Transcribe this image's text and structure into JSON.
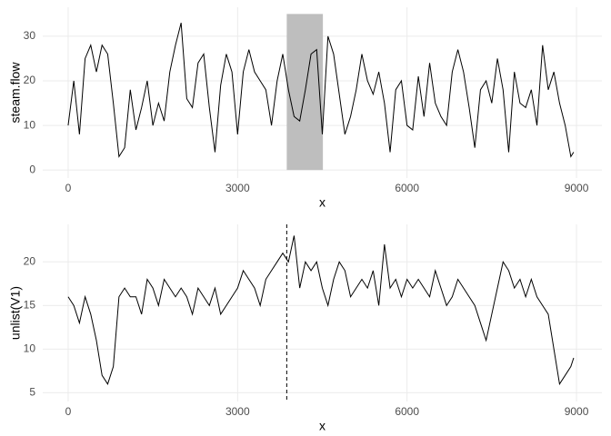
{
  "chart_data": [
    {
      "type": "line",
      "x_label": "x",
      "y_label": "steam.flow",
      "xlim": [
        -450,
        9450
      ],
      "ylim": [
        -1.8,
        36.5
      ],
      "xticks": [
        0,
        3000,
        6000,
        9000
      ],
      "yticks": [
        0,
        10,
        20,
        30
      ],
      "grid": true,
      "highlight": {
        "xmin": 3870,
        "xmax": 4510,
        "ymin": 0,
        "ymax": 35,
        "color": "#bebebe"
      },
      "x": [
        0,
        100,
        200,
        300,
        400,
        500,
        600,
        700,
        800,
        900,
        1000,
        1100,
        1200,
        1300,
        1400,
        1500,
        1600,
        1700,
        1800,
        1900,
        2000,
        2100,
        2200,
        2300,
        2400,
        2500,
        2600,
        2700,
        2800,
        2900,
        3000,
        3100,
        3200,
        3300,
        3400,
        3500,
        3600,
        3700,
        3800,
        3900,
        4000,
        4100,
        4200,
        4300,
        4400,
        4500,
        4600,
        4700,
        4800,
        4900,
        5000,
        5100,
        5200,
        5300,
        5400,
        5500,
        5600,
        5700,
        5800,
        5900,
        6000,
        6100,
        6200,
        6300,
        6400,
        6500,
        6600,
        6700,
        6800,
        6900,
        7000,
        7100,
        7200,
        7300,
        7400,
        7500,
        7600,
        7700,
        7800,
        7900,
        8000,
        8100,
        8200,
        8300,
        8400,
        8500,
        8600,
        8700,
        8800,
        8900,
        8950
      ],
      "series": [
        {
          "color": "#000000",
          "values": [
            10,
            20,
            8,
            25,
            28,
            22,
            28,
            26,
            15,
            3,
            5,
            18,
            9,
            14,
            20,
            10,
            15,
            11,
            22,
            28,
            33,
            16,
            14,
            24,
            26,
            14,
            4,
            19,
            26,
            22,
            8,
            22,
            27,
            22,
            20,
            18,
            10,
            20,
            26,
            18,
            12,
            11,
            18,
            26,
            27,
            8,
            30,
            26,
            17,
            8,
            12,
            18,
            26,
            20,
            17,
            22,
            15,
            4,
            18,
            20,
            10,
            9,
            21,
            12,
            24,
            15,
            12,
            10,
            22,
            27,
            22,
            14,
            5,
            18,
            20,
            15,
            25,
            18,
            4,
            22,
            15,
            14,
            18,
            10,
            28,
            18,
            22,
            15,
            10,
            3,
            4
          ]
        }
      ]
    },
    {
      "type": "line",
      "x_label": "x",
      "y_label": "unlist(V1)",
      "xlim": [
        -450,
        9450
      ],
      "ylim": [
        4,
        24.3
      ],
      "xticks": [
        0,
        3000,
        6000,
        9000
      ],
      "yticks": [
        5,
        10,
        15,
        20
      ],
      "grid": true,
      "vline": {
        "x": 3870,
        "dash": "4,3"
      },
      "x": [
        0,
        100,
        200,
        300,
        400,
        500,
        600,
        700,
        800,
        900,
        1000,
        1100,
        1200,
        1300,
        1400,
        1500,
        1600,
        1700,
        1800,
        1900,
        2000,
        2100,
        2200,
        2300,
        2400,
        2500,
        2600,
        2700,
        2800,
        2900,
        3000,
        3100,
        3200,
        3300,
        3400,
        3500,
        3600,
        3700,
        3800,
        3900,
        4000,
        4100,
        4200,
        4300,
        4400,
        4500,
        4600,
        4700,
        4800,
        4900,
        5000,
        5100,
        5200,
        5300,
        5400,
        5500,
        5600,
        5700,
        5800,
        5900,
        6000,
        6100,
        6200,
        6300,
        6400,
        6500,
        6600,
        6700,
        6800,
        6900,
        7000,
        7100,
        7200,
        7300,
        7400,
        7500,
        7600,
        7700,
        7800,
        7900,
        8000,
        8100,
        8200,
        8300,
        8400,
        8500,
        8600,
        8700,
        8800,
        8900,
        8950
      ],
      "series": [
        {
          "color": "#000000",
          "values": [
            16,
            15,
            13,
            16,
            14,
            11,
            7,
            6,
            8,
            16,
            17,
            16,
            16,
            14,
            18,
            17,
            15,
            18,
            17,
            16,
            17,
            16,
            14,
            17,
            16,
            15,
            17,
            14,
            15,
            16,
            17,
            19,
            18,
            17,
            15,
            18,
            19,
            20,
            21,
            20,
            23,
            17,
            20,
            19,
            20,
            17,
            15,
            18,
            20,
            19,
            16,
            17,
            18,
            17,
            19,
            15,
            22,
            17,
            18,
            16,
            18,
            17,
            18,
            17,
            16,
            19,
            17,
            15,
            16,
            18,
            17,
            16,
            15,
            13,
            11,
            14,
            17,
            20,
            19,
            17,
            18,
            16,
            18,
            16,
            15,
            14,
            10,
            6,
            7,
            8,
            9
          ]
        }
      ]
    }
  ]
}
